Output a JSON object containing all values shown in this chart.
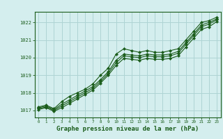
{
  "background_color": "#d4eeee",
  "grid_color": "#aed4d4",
  "line_color": "#1a5c1a",
  "marker_color": "#1a5c1a",
  "title": "Graphe pression niveau de la mer (hPa)",
  "title_fontsize": 6.5,
  "xlim": [
    -0.5,
    23.5
  ],
  "ylim": [
    1016.6,
    1022.6
  ],
  "yticks": [
    1017,
    1018,
    1019,
    1020,
    1021,
    1022
  ],
  "xticks": [
    0,
    1,
    2,
    3,
    4,
    5,
    6,
    7,
    8,
    9,
    10,
    11,
    12,
    13,
    14,
    15,
    16,
    17,
    18,
    19,
    20,
    21,
    22,
    23
  ],
  "series1": [
    1017.2,
    1017.3,
    1017.1,
    1017.5,
    1017.8,
    1018.0,
    1018.2,
    1018.5,
    1019.0,
    1019.4,
    1020.2,
    1020.5,
    1020.4,
    1020.3,
    1020.4,
    1020.3,
    1020.3,
    1020.4,
    1020.5,
    1021.0,
    1021.5,
    1022.0,
    1022.1,
    1022.3
  ],
  "series2": [
    1017.15,
    1017.25,
    1017.05,
    1017.35,
    1017.6,
    1017.85,
    1018.1,
    1018.35,
    1018.75,
    1019.2,
    1019.85,
    1020.2,
    1020.15,
    1020.1,
    1020.2,
    1020.15,
    1020.15,
    1020.2,
    1020.35,
    1020.85,
    1021.35,
    1021.85,
    1022.0,
    1022.2
  ],
  "series3": [
    1017.1,
    1017.2,
    1017.0,
    1017.25,
    1017.5,
    1017.75,
    1018.0,
    1018.25,
    1018.65,
    1019.1,
    1019.7,
    1020.1,
    1020.05,
    1020.0,
    1020.1,
    1020.05,
    1020.05,
    1020.1,
    1020.25,
    1020.75,
    1021.25,
    1021.75,
    1021.9,
    1022.15
  ],
  "series4": [
    1017.05,
    1017.15,
    1016.95,
    1017.15,
    1017.4,
    1017.65,
    1017.9,
    1018.15,
    1018.55,
    1019.0,
    1019.55,
    1019.95,
    1019.9,
    1019.85,
    1019.95,
    1019.9,
    1019.9,
    1019.95,
    1020.1,
    1020.6,
    1021.1,
    1021.6,
    1021.75,
    1022.05
  ]
}
